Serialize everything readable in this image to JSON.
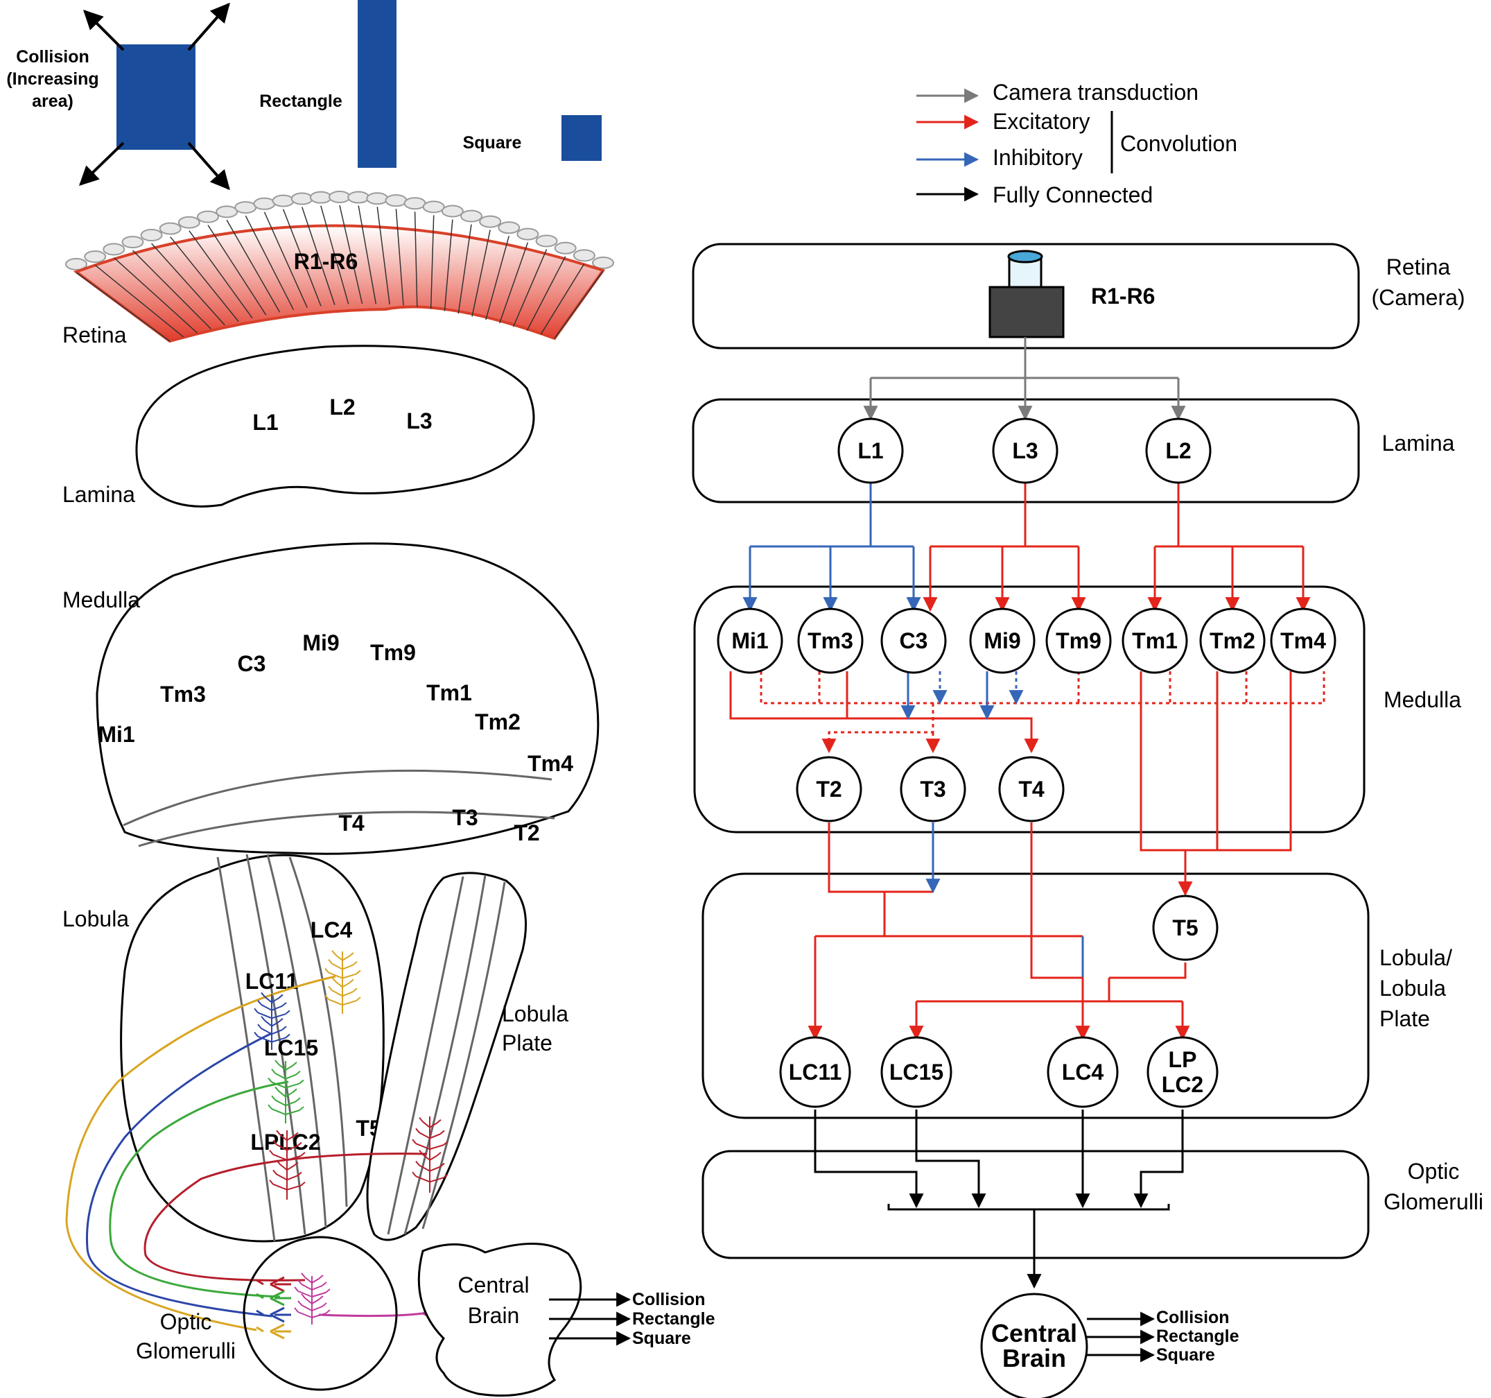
{
  "colors": {
    "stimulus_blue": "#1a4e9c",
    "excitatory": "#e3241b",
    "inhibitory": "#3566b8",
    "camera_gray": "#7a7a7a",
    "lc4": "#d9a521",
    "lc11": "#2b45a8",
    "lc15": "#3aa83a",
    "lplc2": "#b51e2b",
    "projection": "#c03a9e",
    "retina_red": "#e13b2b"
  },
  "stimuli": {
    "collision": "Collision\n(Increasing\narea)",
    "rectangle": "Rectangle",
    "square": "Square"
  },
  "anatomy": {
    "retina_label": "Retina",
    "photoreceptors": "R1-R6",
    "lamina_label": "Lamina",
    "lamina_cells": [
      "L1",
      "L2",
      "L3"
    ],
    "medulla_label": "Medulla",
    "medulla_cells": [
      "Mi1",
      "Tm3",
      "C3",
      "Mi9",
      "Tm9",
      "Tm1",
      "Tm2",
      "Tm4"
    ],
    "medulla_t_cells": [
      "T4",
      "T3",
      "T2"
    ],
    "lobula_label": "Lobula",
    "lobula_cells": [
      "LC4",
      "LC11",
      "LC15",
      "LPLC2",
      "T5"
    ],
    "lobula_plate_label": "Lobula\nPlate",
    "optic_glomeruli_label": "Optic\nGlomerulli",
    "central_brain_label": "Central\nBrain",
    "outputs": [
      "Collision",
      "Rectangle",
      "Square"
    ]
  },
  "legend": [
    {
      "key": "camera",
      "label": "Camera transduction"
    },
    {
      "key": "excitatory",
      "label": "Excitatory"
    },
    {
      "key": "inhibitory",
      "label": "Inhibitory"
    },
    {
      "key": "fully",
      "label": "Fully Connected"
    }
  ],
  "legend_group_label": "Convolution",
  "network": {
    "retina_layer": "Retina\n(Camera)",
    "camera_label": "R1-R6",
    "lamina_layer": "Lamina",
    "lamina_nodes": [
      "L1",
      "L3",
      "L2"
    ],
    "medulla_layer": "Medulla",
    "medulla_nodes": [
      "Mi1",
      "Tm3",
      "C3",
      "Mi9",
      "Tm9",
      "Tm1",
      "Tm2",
      "Tm4"
    ],
    "t_nodes": [
      "T2",
      "T3",
      "T4"
    ],
    "lobula_layer": "Lobula/\nLobula\nPlate",
    "t5_node": "T5",
    "lc_nodes": [
      "LC11",
      "LC15",
      "LC4",
      "LP\nLC2"
    ],
    "glomeruli_layer": "Optic\nGlomerulli",
    "central_brain": "Central\nBrain",
    "outputs": [
      "Collision",
      "Rectangle",
      "Square"
    ]
  }
}
